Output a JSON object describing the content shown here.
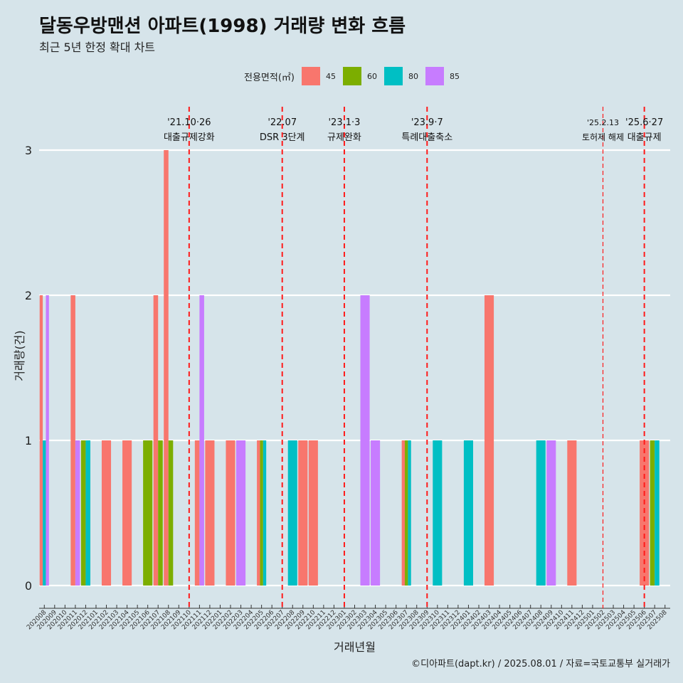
{
  "title": "달동우방맨션 아파트(1998) 거래량 변화 흐름",
  "subtitle": "최근 5년 한정 확대 차트",
  "caption": "©디아파트(dapt.kr) / 2025.08.01 / 자료=국토교통부 실거래가",
  "legend": {
    "title": "전용면적(㎡)",
    "items": [
      {
        "label": "45",
        "color": "#F8766D"
      },
      {
        "label": "60",
        "color": "#7CAE00"
      },
      {
        "label": "80",
        "color": "#00BFC4"
      },
      {
        "label": "85",
        "color": "#C77CFF"
      }
    ]
  },
  "chart_data": {
    "type": "bar",
    "xlabel": "거래년월",
    "ylabel": "거래량(건)",
    "ylim": [
      0,
      3
    ],
    "yticks": [
      0,
      1,
      2,
      3
    ],
    "grid": true,
    "legend_position": "top",
    "categories": [
      "202008",
      "202009",
      "202010",
      "202011",
      "202012",
      "202101",
      "202102",
      "202103",
      "202104",
      "202105",
      "202106",
      "202107",
      "202108",
      "202109",
      "202110",
      "202111",
      "202112",
      "202201",
      "202202",
      "202203",
      "202204",
      "202205",
      "202206",
      "202207",
      "202208",
      "202209",
      "202210",
      "202211",
      "202212",
      "202301",
      "202302",
      "202303",
      "202304",
      "202305",
      "202306",
      "202307",
      "202308",
      "202309",
      "202310",
      "202311",
      "202312",
      "202401",
      "202402",
      "202403",
      "202404",
      "202405",
      "202406",
      "202407",
      "202408",
      "202409",
      "202410",
      "202411",
      "202412",
      "202501",
      "202502",
      "202503",
      "202504",
      "202505",
      "202506",
      "202507",
      "202508"
    ],
    "series": [
      {
        "name": "45",
        "color": "#F8766D",
        "values": [
          2,
          0,
          0,
          2,
          0,
          0,
          1,
          0,
          1,
          0,
          0,
          2,
          3,
          0,
          0,
          1,
          1,
          0,
          1,
          0,
          0,
          1,
          0,
          0,
          0,
          1,
          1,
          0,
          0,
          0,
          0,
          0,
          0,
          0,
          0,
          1,
          0,
          0,
          0,
          0,
          0,
          0,
          0,
          2,
          0,
          0,
          0,
          0,
          0,
          0,
          0,
          1,
          0,
          0,
          0,
          0,
          0,
          0,
          1,
          0,
          0
        ]
      },
      {
        "name": "60",
        "color": "#7CAE00",
        "values": [
          0,
          0,
          0,
          0,
          1,
          0,
          0,
          0,
          0,
          0,
          1,
          1,
          1,
          0,
          0,
          0,
          0,
          0,
          0,
          0,
          0,
          1,
          0,
          0,
          0,
          0,
          0,
          0,
          0,
          0,
          0,
          0,
          0,
          0,
          0,
          1,
          0,
          0,
          0,
          0,
          0,
          0,
          0,
          0,
          0,
          0,
          0,
          0,
          0,
          0,
          0,
          0,
          0,
          0,
          0,
          0,
          0,
          0,
          0,
          1,
          0
        ]
      },
      {
        "name": "80",
        "color": "#00BFC4",
        "values": [
          1,
          0,
          0,
          0,
          1,
          0,
          0,
          0,
          0,
          0,
          0,
          0,
          0,
          0,
          0,
          0,
          0,
          0,
          0,
          0,
          0,
          1,
          0,
          0,
          1,
          0,
          0,
          0,
          0,
          0,
          0,
          0,
          0,
          0,
          0,
          1,
          0,
          0,
          1,
          0,
          0,
          1,
          0,
          0,
          0,
          0,
          0,
          0,
          1,
          0,
          0,
          0,
          0,
          0,
          0,
          0,
          0,
          0,
          0,
          1,
          0
        ]
      },
      {
        "name": "85",
        "color": "#C77CFF",
        "values": [
          2,
          0,
          0,
          1,
          0,
          0,
          0,
          0,
          0,
          0,
          0,
          0,
          0,
          0,
          0,
          2,
          0,
          0,
          0,
          1,
          0,
          0,
          0,
          0,
          0,
          0,
          0,
          0,
          0,
          0,
          0,
          2,
          1,
          0,
          0,
          0,
          0,
          0,
          0,
          0,
          0,
          0,
          0,
          0,
          0,
          0,
          0,
          0,
          0,
          1,
          0,
          0,
          0,
          0,
          0,
          0,
          0,
          0,
          0,
          0,
          0
        ]
      }
    ],
    "annotations": [
      {
        "at": "202110",
        "date": "'21.10·26",
        "text": "대출규제강화",
        "style": "bold"
      },
      {
        "at": "202207",
        "date": "'22.07",
        "text": "DSR 3단계",
        "style": "bold"
      },
      {
        "at": "202301",
        "date": "'23.1·3",
        "text": "규제완화",
        "style": "bold"
      },
      {
        "at": "202309",
        "date": "'23.9·7",
        "text": "특례대출축소",
        "style": "bold"
      },
      {
        "at": "202502",
        "date": "'25.2.13",
        "text": "토허제 해제",
        "style": "thin"
      },
      {
        "at": "202506",
        "date": "'25.6·27",
        "text": "대출규제",
        "style": "bold"
      }
    ]
  }
}
